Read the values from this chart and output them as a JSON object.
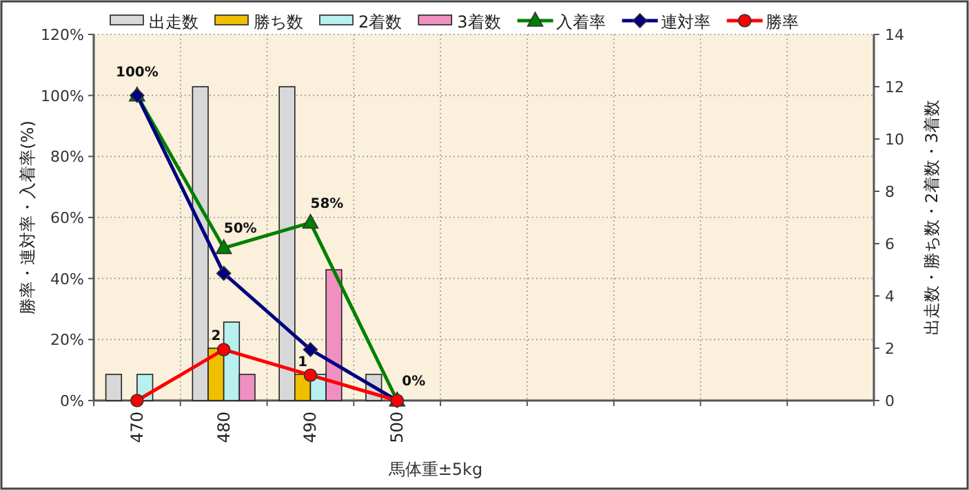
{
  "chart_data": {
    "type": "bar",
    "xlabel": "馬体重±5kg",
    "ylabel": "勝率・連対率・入着率(%)",
    "y2label": "出走数・勝ち数・2着数・3着数",
    "categories": [
      "470",
      "480",
      "490",
      "500",
      null,
      null,
      null,
      null,
      null
    ],
    "series": [
      {
        "name": "出走数",
        "axis": "y2",
        "color": "#d8d8d8",
        "values": [
          1,
          12,
          12,
          1,
          null,
          null,
          null,
          null,
          null
        ]
      },
      {
        "name": "勝ち数",
        "axis": "y2",
        "color": "#f0c000",
        "values": [
          0,
          2,
          1,
          0,
          null,
          null,
          null,
          null,
          null
        ],
        "value_labels": [
          null,
          "2",
          "1",
          null,
          null,
          null,
          null,
          null,
          null
        ]
      },
      {
        "name": "2着数",
        "axis": "y2",
        "color": "#b8f0f0",
        "values": [
          1,
          3,
          1,
          0,
          null,
          null,
          null,
          null,
          null
        ]
      },
      {
        "name": "3着数",
        "axis": "y2",
        "color": "#f090c0",
        "values": [
          0,
          1,
          5,
          0,
          null,
          null,
          null,
          null,
          null
        ]
      },
      {
        "name": "入着率",
        "type": "line",
        "axis": "y",
        "color": "#008000",
        "marker": "triangle",
        "values": [
          100,
          50,
          58.3,
          0,
          null,
          null,
          null,
          null,
          null
        ],
        "value_labels": [
          "100%",
          "50%",
          "58%",
          "0%",
          null,
          null,
          null,
          null,
          null
        ]
      },
      {
        "name": "連対率",
        "type": "line",
        "axis": "y",
        "color": "#000080",
        "marker": "diamond",
        "values": [
          100,
          41.7,
          16.7,
          0,
          null,
          null,
          null,
          null,
          null
        ]
      },
      {
        "name": "勝率",
        "type": "line",
        "axis": "y",
        "color": "#ff0000",
        "marker": "circle",
        "values": [
          0,
          16.7,
          8.3,
          0,
          null,
          null,
          null,
          null,
          null
        ]
      }
    ],
    "ylim": [
      0,
      120
    ],
    "yticks": [
      {
        "value": 0,
        "label": "0%"
      },
      {
        "value": 20,
        "label": "20%"
      },
      {
        "value": 40,
        "label": "40%"
      },
      {
        "value": 60,
        "label": "60%"
      },
      {
        "value": 80,
        "label": "80%"
      },
      {
        "value": 100,
        "label": "100%"
      },
      {
        "value": 120,
        "label": "120%"
      }
    ],
    "y2lim": [
      0,
      14
    ],
    "y2ticks": [
      0,
      2,
      4,
      6,
      8,
      10,
      12,
      14
    ],
    "grid": true,
    "legend": "top"
  }
}
